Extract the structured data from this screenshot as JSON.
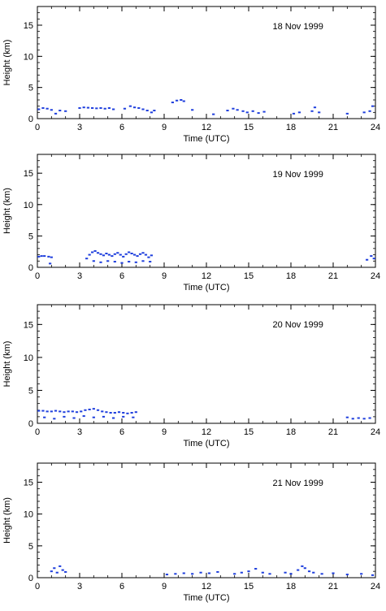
{
  "chart_data": [
    {
      "type": "scatter",
      "title": "18 Nov 1999",
      "xlabel": "Time (UTC)",
      "ylabel": "Height (km)",
      "xlim": [
        0,
        24
      ],
      "ylim": [
        0,
        18
      ],
      "xticks": [
        0,
        3,
        6,
        9,
        12,
        15,
        18,
        21,
        24
      ],
      "yticks": [
        0,
        5,
        10,
        15
      ],
      "grid": false,
      "color": "#1f3fdd",
      "series": [
        {
          "values": [
            [
              0.1,
              1.5
            ],
            [
              0.4,
              1.7
            ],
            [
              0.7,
              1.6
            ],
            [
              1.0,
              1.4
            ],
            [
              1.3,
              0.8
            ],
            [
              1.6,
              1.3
            ],
            [
              2.0,
              1.2
            ],
            [
              3.0,
              1.7
            ],
            [
              3.3,
              1.8
            ],
            [
              3.6,
              1.75
            ],
            [
              3.9,
              1.7
            ],
            [
              4.2,
              1.65
            ],
            [
              4.5,
              1.7
            ],
            [
              4.8,
              1.6
            ],
            [
              5.1,
              1.7
            ],
            [
              5.4,
              1.5
            ],
            [
              6.2,
              1.6
            ],
            [
              6.6,
              2.0
            ],
            [
              6.9,
              1.8
            ],
            [
              7.2,
              1.7
            ],
            [
              7.5,
              1.5
            ],
            [
              7.8,
              1.3
            ],
            [
              8.1,
              1.0
            ],
            [
              8.3,
              1.3
            ],
            [
              9.6,
              2.6
            ],
            [
              9.9,
              2.9
            ],
            [
              10.2,
              3.0
            ],
            [
              10.4,
              2.8
            ],
            [
              11.0,
              1.4
            ],
            [
              12.5,
              0.7
            ],
            [
              13.5,
              1.3
            ],
            [
              13.9,
              1.6
            ],
            [
              14.2,
              1.4
            ],
            [
              14.6,
              1.2
            ],
            [
              14.9,
              1.0
            ],
            [
              15.3,
              1.2
            ],
            [
              15.7,
              0.9
            ],
            [
              16.1,
              1.1
            ],
            [
              18.2,
              0.8
            ],
            [
              18.6,
              1.0
            ],
            [
              19.5,
              1.2
            ],
            [
              19.7,
              1.8
            ],
            [
              20.0,
              1.0
            ],
            [
              22.0,
              0.8
            ],
            [
              23.2,
              1.0
            ],
            [
              23.6,
              1.2
            ],
            [
              23.8,
              2.0
            ]
          ]
        }
      ]
    },
    {
      "type": "scatter",
      "title": "19 Nov 1999",
      "xlabel": "Time (UTC)",
      "ylabel": "Height (km)",
      "xlim": [
        0,
        24
      ],
      "ylim": [
        0,
        18
      ],
      "xticks": [
        0,
        3,
        6,
        9,
        12,
        15,
        18,
        21,
        24
      ],
      "yticks": [
        0,
        5,
        10,
        15
      ],
      "grid": false,
      "color": "#1f3fdd",
      "series": [
        {
          "values": [
            [
              0.1,
              1.7
            ],
            [
              0.3,
              1.8
            ],
            [
              0.5,
              1.8
            ],
            [
              0.8,
              1.7
            ],
            [
              1.0,
              1.6
            ],
            [
              0.9,
              0.6
            ],
            [
              3.5,
              1.4
            ],
            [
              3.7,
              2.0
            ],
            [
              3.9,
              2.4
            ],
            [
              4.1,
              2.6
            ],
            [
              4.3,
              2.3
            ],
            [
              4.5,
              2.1
            ],
            [
              4.7,
              1.9
            ],
            [
              4.9,
              2.2
            ],
            [
              5.1,
              2.0
            ],
            [
              5.3,
              1.8
            ],
            [
              5.5,
              2.1
            ],
            [
              5.7,
              2.3
            ],
            [
              5.9,
              2.0
            ],
            [
              6.1,
              1.7
            ],
            [
              6.3,
              2.1
            ],
            [
              6.5,
              2.4
            ],
            [
              6.7,
              2.2
            ],
            [
              6.9,
              2.0
            ],
            [
              7.1,
              1.8
            ],
            [
              7.3,
              2.1
            ],
            [
              7.5,
              2.3
            ],
            [
              7.7,
              2.0
            ],
            [
              7.9,
              1.6
            ],
            [
              8.1,
              1.9
            ],
            [
              4.0,
              1.0
            ],
            [
              4.5,
              0.8
            ],
            [
              5.0,
              1.0
            ],
            [
              5.5,
              0.9
            ],
            [
              6.0,
              0.7
            ],
            [
              6.5,
              0.9
            ],
            [
              7.0,
              0.8
            ],
            [
              7.5,
              1.0
            ],
            [
              8.0,
              0.9
            ],
            [
              23.4,
              1.2
            ],
            [
              23.7,
              1.8
            ],
            [
              23.9,
              1.4
            ]
          ]
        }
      ]
    },
    {
      "type": "scatter",
      "title": "20 Nov 1999",
      "xlabel": "Time (UTC)",
      "ylabel": "Height (km)",
      "xlim": [
        0,
        24
      ],
      "ylim": [
        0,
        18
      ],
      "xticks": [
        0,
        3,
        6,
        9,
        12,
        15,
        18,
        21,
        24
      ],
      "yticks": [
        0,
        5,
        10,
        15
      ],
      "grid": false,
      "color": "#1f3fdd",
      "series": [
        {
          "values": [
            [
              0.1,
              1.9
            ],
            [
              0.4,
              1.9
            ],
            [
              0.7,
              1.8
            ],
            [
              1.0,
              1.8
            ],
            [
              1.3,
              1.9
            ],
            [
              1.6,
              1.8
            ],
            [
              1.9,
              1.7
            ],
            [
              2.2,
              1.8
            ],
            [
              2.5,
              1.8
            ],
            [
              2.8,
              1.7
            ],
            [
              3.1,
              1.8
            ],
            [
              3.4,
              2.0
            ],
            [
              3.7,
              2.1
            ],
            [
              4.0,
              2.2
            ],
            [
              4.3,
              2.0
            ],
            [
              4.6,
              1.8
            ],
            [
              4.9,
              1.7
            ],
            [
              5.2,
              1.6
            ],
            [
              5.5,
              1.6
            ],
            [
              5.8,
              1.7
            ],
            [
              6.1,
              1.6
            ],
            [
              6.4,
              1.5
            ],
            [
              6.7,
              1.6
            ],
            [
              7.0,
              1.7
            ],
            [
              0.5,
              0.9
            ],
            [
              1.2,
              0.7
            ],
            [
              1.9,
              1.0
            ],
            [
              2.6,
              0.8
            ],
            [
              3.3,
              1.1
            ],
            [
              4.0,
              0.9
            ],
            [
              4.7,
              1.0
            ],
            [
              5.4,
              0.8
            ],
            [
              6.1,
              1.0
            ],
            [
              6.8,
              0.9
            ],
            [
              22.0,
              0.9
            ],
            [
              22.4,
              0.7
            ],
            [
              22.8,
              0.8
            ],
            [
              23.2,
              0.7
            ],
            [
              23.6,
              0.8
            ]
          ]
        }
      ]
    },
    {
      "type": "scatter",
      "title": "21 Nov 1999",
      "xlabel": "Time (UTC)",
      "ylabel": "Height (km)",
      "xlim": [
        0,
        24
      ],
      "ylim": [
        0,
        18
      ],
      "xticks": [
        0,
        3,
        6,
        9,
        12,
        15,
        18,
        21,
        24
      ],
      "yticks": [
        0,
        5,
        10,
        15
      ],
      "grid": false,
      "color": "#1f3fdd",
      "series": [
        {
          "values": [
            [
              1.0,
              1.0
            ],
            [
              1.2,
              1.5
            ],
            [
              1.4,
              0.8
            ],
            [
              1.6,
              1.8
            ],
            [
              1.8,
              1.2
            ],
            [
              2.0,
              0.9
            ],
            [
              9.2,
              0.5
            ],
            [
              9.8,
              0.6
            ],
            [
              10.4,
              0.7
            ],
            [
              11.0,
              0.6
            ],
            [
              11.6,
              0.8
            ],
            [
              12.2,
              0.7
            ],
            [
              12.8,
              0.9
            ],
            [
              14.0,
              0.6
            ],
            [
              14.5,
              0.8
            ],
            [
              15.0,
              1.0
            ],
            [
              15.5,
              1.4
            ],
            [
              16.0,
              0.8
            ],
            [
              16.5,
              0.6
            ],
            [
              17.6,
              0.8
            ],
            [
              18.0,
              0.6
            ],
            [
              18.5,
              1.2
            ],
            [
              18.8,
              1.8
            ],
            [
              19.0,
              1.5
            ],
            [
              19.3,
              1.0
            ],
            [
              19.6,
              0.8
            ],
            [
              20.2,
              0.6
            ],
            [
              21.0,
              0.7
            ],
            [
              22.0,
              0.5
            ],
            [
              23.0,
              0.6
            ],
            [
              23.8,
              0.4
            ]
          ]
        }
      ]
    }
  ]
}
